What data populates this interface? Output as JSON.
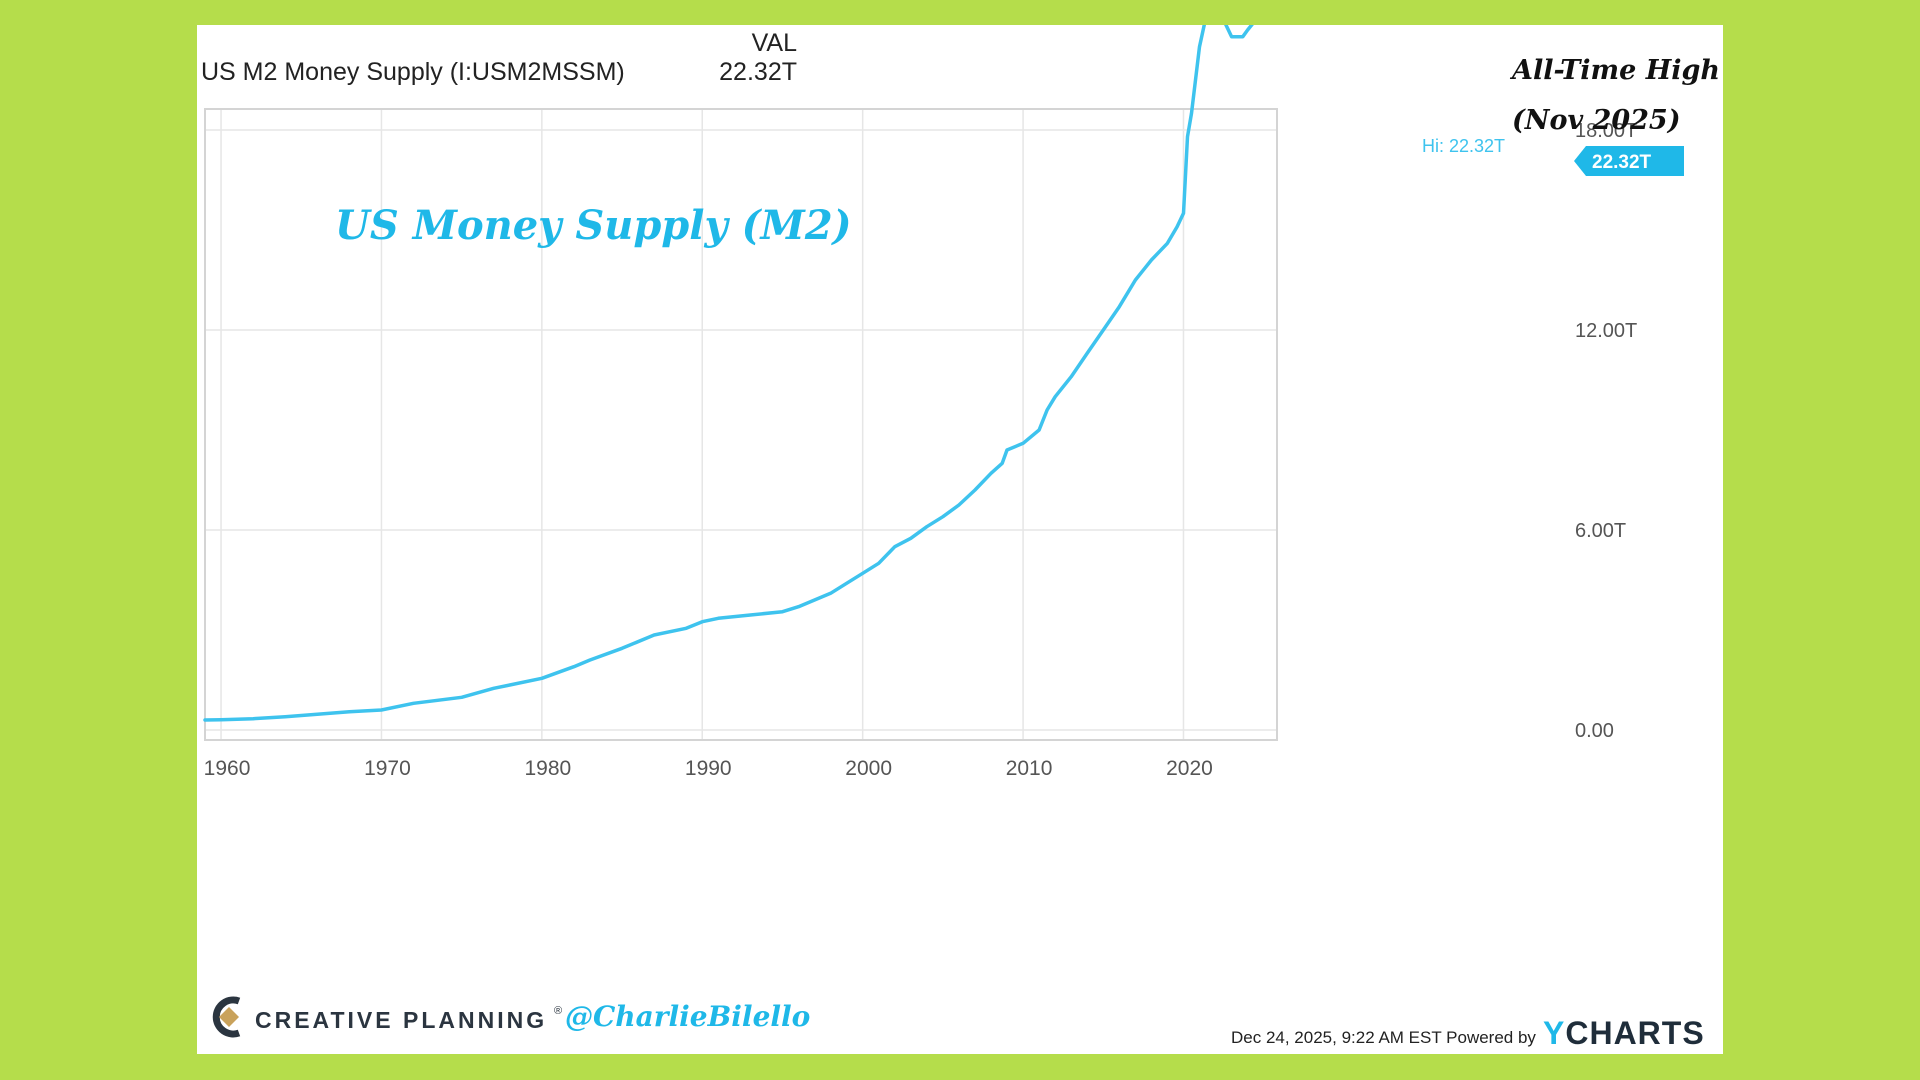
{
  "legend": {
    "column_header": "VAL",
    "series_name": "US M2 Money Supply (I:USM2MSSM)",
    "series_value": "22.32T"
  },
  "annotation": {
    "line1": "All-Time High",
    "line2": "(Nov 2025)"
  },
  "overlay_title": "US Money Supply (M2)",
  "high_label": "Hi: 22.32T",
  "last_value_tag": "22.32T",
  "footer": {
    "brand": "CREATIVE PLANNING",
    "brand_mark": "®",
    "handle": "@CharlieBilello",
    "date": "Dec 24, 2025, 9:22 AM EST Powered by",
    "ycharts_y": "Y",
    "ycharts_rest": "CHARTS"
  },
  "colors": {
    "background": "#b5dd4b",
    "line": "#3ec3ee",
    "accent": "#1fb8e8",
    "grid": "#e6e6e6"
  },
  "chart_data": {
    "type": "line",
    "title": "",
    "xlabel": "",
    "ylabel": "",
    "xlim": [
      1959,
      2026
    ],
    "ylim": [
      0,
      24
    ],
    "x_ticks": [
      1960,
      1970,
      1980,
      1990,
      2000,
      2010,
      2020
    ],
    "x_tick_labels": [
      "1960",
      "1970",
      "1980",
      "1990",
      "2000",
      "2010",
      "2020"
    ],
    "y_ticks": [
      0,
      6,
      12,
      18
    ],
    "y_tick_labels": [
      "0.00",
      "6.00T",
      "12.00T",
      "18.00T"
    ],
    "grid": true,
    "reference_line": {
      "value": 22.32,
      "style": "dashed"
    },
    "series": [
      {
        "name": "US M2 Money Supply (I:USM2MSSM)",
        "x": [
          1959,
          1960,
          1962,
          1964,
          1966,
          1968,
          1970,
          1972,
          1973,
          1975,
          1977,
          1978,
          1980,
          1982,
          1983,
          1985,
          1987,
          1989,
          1990,
          1991,
          1993,
          1995,
          1996,
          1998,
          1999,
          2000,
          2001,
          2002,
          2003,
          2004,
          2005,
          2006,
          2007,
          2008,
          2008.7,
          2009,
          2010,
          2011,
          2011.5,
          2012,
          2013,
          2014,
          2015,
          2016,
          2017,
          2018,
          2019,
          2019.6,
          2020,
          2020.25,
          2020.5,
          2021,
          2021.5,
          2022,
          2022.5,
          2023,
          2023.7,
          2024,
          2024.5,
          2025,
          2025.5,
          2025.83
        ],
        "values": [
          0.3,
          0.31,
          0.34,
          0.4,
          0.47,
          0.55,
          0.6,
          0.8,
          0.86,
          0.98,
          1.25,
          1.35,
          1.55,
          1.9,
          2.1,
          2.45,
          2.85,
          3.05,
          3.25,
          3.35,
          3.45,
          3.55,
          3.7,
          4.1,
          4.4,
          4.7,
          5.0,
          5.5,
          5.75,
          6.1,
          6.4,
          6.75,
          7.2,
          7.7,
          8.0,
          8.4,
          8.6,
          9.0,
          9.6,
          10.0,
          10.6,
          11.3,
          12.0,
          12.7,
          13.5,
          14.1,
          14.6,
          15.1,
          15.5,
          17.8,
          18.5,
          20.5,
          21.6,
          21.6,
          21.3,
          20.8,
          20.8,
          21.0,
          21.3,
          21.7,
          22.1,
          22.32
        ]
      }
    ]
  }
}
